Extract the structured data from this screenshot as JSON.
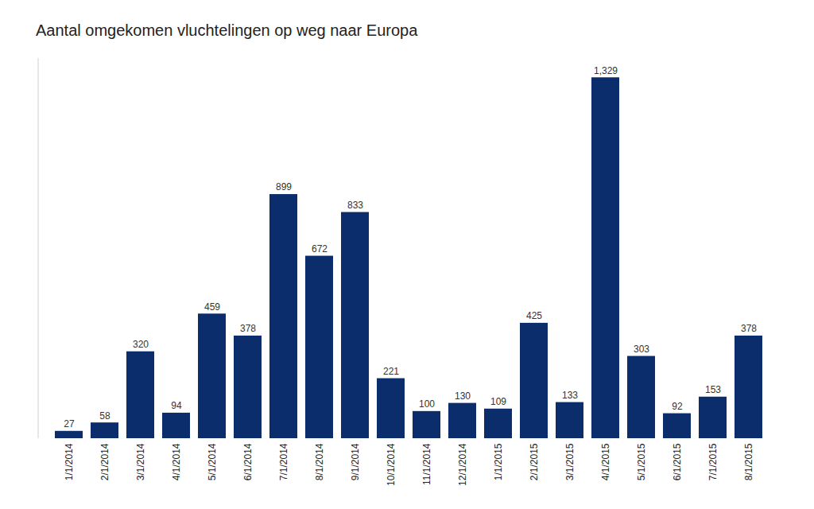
{
  "chart_data": {
    "type": "bar",
    "title": "Aantal omgekomen vluchtelingen op weg naar Europa",
    "categories": [
      "1/1/2014",
      "2/1/2014",
      "3/1/2014",
      "4/1/2014",
      "5/1/2014",
      "6/1/2014",
      "7/1/2014",
      "8/1/2014",
      "9/1/2014",
      "10/1/2014",
      "11/1/2014",
      "12/1/2014",
      "1/1/2015",
      "2/1/2015",
      "3/1/2015",
      "4/1/2015",
      "5/1/2015",
      "6/1/2015",
      "7/1/2015",
      "8/1/2015"
    ],
    "values": [
      27,
      58,
      320,
      94,
      459,
      378,
      899,
      672,
      833,
      221,
      100,
      130,
      109,
      425,
      133,
      1329,
      303,
      92,
      153,
      378
    ],
    "value_labels": [
      "27",
      "58",
      "320",
      "94",
      "459",
      "378",
      "899",
      "672",
      "833",
      "221",
      "100",
      "130",
      "109",
      "425",
      "133",
      "1,329",
      "303",
      "92",
      "153",
      "378"
    ],
    "color": "#0b2d6b",
    "ylim": [
      0,
      1400
    ],
    "data_labels": true,
    "tick_labels": "x",
    "grid": false
  }
}
